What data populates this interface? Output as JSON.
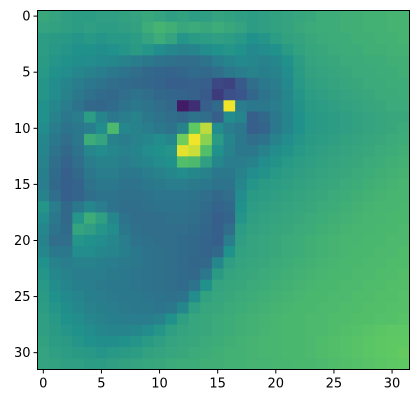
{
  "chart_data": {
    "type": "heatmap",
    "title": "",
    "xlabel": "",
    "ylabel": "",
    "colormap": "viridis",
    "grid": false,
    "xlim": [
      -0.5,
      31.5
    ],
    "ylim": [
      31.5,
      -0.5
    ],
    "x_ticks": [
      0,
      5,
      10,
      15,
      20,
      25,
      30
    ],
    "y_ticks": [
      0,
      5,
      10,
      15,
      20,
      25,
      30
    ],
    "x_tick_labels": [
      "0",
      "5",
      "10",
      "15",
      "20",
      "25",
      "30"
    ],
    "y_tick_labels": [
      "0",
      "5",
      "10",
      "15",
      "20",
      "25",
      "30"
    ],
    "colors": {
      "axis": "#000000",
      "background": "#ffffff"
    },
    "notes": "32x32 grayscale image rendered with viridis colormap; values normalized 0-1",
    "values": [
      [
        0.6,
        0.58,
        0.56,
        0.55,
        0.55,
        0.56,
        0.56,
        0.57,
        0.58,
        0.6,
        0.58,
        0.56,
        0.57,
        0.55,
        0.56,
        0.58,
        0.57,
        0.56,
        0.55,
        0.56,
        0.57,
        0.58,
        0.59,
        0.6,
        0.62,
        0.62,
        0.63,
        0.63,
        0.64,
        0.64,
        0.65,
        0.65
      ],
      [
        0.58,
        0.57,
        0.56,
        0.55,
        0.56,
        0.55,
        0.55,
        0.56,
        0.57,
        0.62,
        0.65,
        0.63,
        0.6,
        0.61,
        0.6,
        0.62,
        0.6,
        0.58,
        0.55,
        0.56,
        0.57,
        0.58,
        0.6,
        0.61,
        0.62,
        0.62,
        0.63,
        0.63,
        0.64,
        0.64,
        0.65,
        0.65
      ],
      [
        0.55,
        0.54,
        0.53,
        0.52,
        0.53,
        0.52,
        0.53,
        0.53,
        0.55,
        0.58,
        0.62,
        0.58,
        0.52,
        0.54,
        0.55,
        0.56,
        0.55,
        0.53,
        0.5,
        0.52,
        0.55,
        0.57,
        0.58,
        0.6,
        0.61,
        0.62,
        0.62,
        0.63,
        0.63,
        0.64,
        0.64,
        0.65
      ],
      [
        0.55,
        0.53,
        0.52,
        0.5,
        0.5,
        0.49,
        0.5,
        0.52,
        0.54,
        0.52,
        0.48,
        0.46,
        0.44,
        0.45,
        0.48,
        0.5,
        0.52,
        0.5,
        0.47,
        0.48,
        0.5,
        0.54,
        0.57,
        0.59,
        0.6,
        0.61,
        0.62,
        0.62,
        0.63,
        0.63,
        0.64,
        0.64
      ],
      [
        0.54,
        0.52,
        0.5,
        0.49,
        0.48,
        0.47,
        0.46,
        0.44,
        0.42,
        0.4,
        0.38,
        0.37,
        0.36,
        0.36,
        0.38,
        0.42,
        0.45,
        0.47,
        0.46,
        0.44,
        0.46,
        0.5,
        0.55,
        0.58,
        0.59,
        0.6,
        0.61,
        0.61,
        0.62,
        0.62,
        0.63,
        0.63
      ],
      [
        0.53,
        0.5,
        0.48,
        0.46,
        0.44,
        0.42,
        0.4,
        0.38,
        0.36,
        0.34,
        0.33,
        0.32,
        0.33,
        0.35,
        0.34,
        0.36,
        0.4,
        0.42,
        0.44,
        0.43,
        0.44,
        0.48,
        0.54,
        0.57,
        0.58,
        0.59,
        0.6,
        0.61,
        0.61,
        0.62,
        0.62,
        0.63
      ],
      [
        0.52,
        0.48,
        0.45,
        0.42,
        0.4,
        0.38,
        0.36,
        0.35,
        0.34,
        0.33,
        0.32,
        0.3,
        0.3,
        0.31,
        0.3,
        0.22,
        0.2,
        0.28,
        0.36,
        0.4,
        0.42,
        0.47,
        0.53,
        0.56,
        0.57,
        0.58,
        0.59,
        0.6,
        0.61,
        0.61,
        0.62,
        0.62
      ],
      [
        0.52,
        0.48,
        0.44,
        0.4,
        0.37,
        0.35,
        0.34,
        0.36,
        0.38,
        0.36,
        0.34,
        0.33,
        0.32,
        0.31,
        0.28,
        0.18,
        0.24,
        0.26,
        0.33,
        0.38,
        0.41,
        0.46,
        0.52,
        0.55,
        0.56,
        0.57,
        0.58,
        0.59,
        0.6,
        0.61,
        0.61,
        0.62
      ],
      [
        0.5,
        0.46,
        0.42,
        0.38,
        0.34,
        0.33,
        0.35,
        0.38,
        0.4,
        0.38,
        0.36,
        0.34,
        0.08,
        0.14,
        0.3,
        0.35,
        0.98,
        0.42,
        0.4,
        0.4,
        0.42,
        0.46,
        0.51,
        0.54,
        0.55,
        0.56,
        0.57,
        0.58,
        0.59,
        0.6,
        0.61,
        0.61
      ],
      [
        0.5,
        0.44,
        0.4,
        0.42,
        0.55,
        0.45,
        0.4,
        0.42,
        0.44,
        0.4,
        0.38,
        0.36,
        0.34,
        0.38,
        0.36,
        0.3,
        0.48,
        0.45,
        0.3,
        0.34,
        0.4,
        0.45,
        0.5,
        0.53,
        0.54,
        0.55,
        0.56,
        0.57,
        0.58,
        0.59,
        0.6,
        0.6
      ],
      [
        0.48,
        0.42,
        0.38,
        0.4,
        0.42,
        0.48,
        0.68,
        0.46,
        0.44,
        0.42,
        0.4,
        0.38,
        0.44,
        0.75,
        0.9,
        0.48,
        0.42,
        0.4,
        0.3,
        0.32,
        0.4,
        0.45,
        0.5,
        0.53,
        0.54,
        0.55,
        0.56,
        0.57,
        0.58,
        0.59,
        0.6,
        0.61
      ],
      [
        0.46,
        0.4,
        0.36,
        0.4,
        0.62,
        0.58,
        0.44,
        0.42,
        0.44,
        0.46,
        0.48,
        0.46,
        0.78,
        0.98,
        0.82,
        0.54,
        0.45,
        0.4,
        0.36,
        0.38,
        0.44,
        0.48,
        0.52,
        0.54,
        0.55,
        0.56,
        0.57,
        0.58,
        0.59,
        0.6,
        0.61,
        0.62
      ],
      [
        0.45,
        0.38,
        0.34,
        0.38,
        0.46,
        0.48,
        0.46,
        0.44,
        0.45,
        0.48,
        0.5,
        0.52,
        0.96,
        0.92,
        0.7,
        0.5,
        0.44,
        0.4,
        0.4,
        0.44,
        0.48,
        0.51,
        0.53,
        0.55,
        0.56,
        0.57,
        0.58,
        0.59,
        0.6,
        0.61,
        0.62,
        0.63
      ],
      [
        0.44,
        0.36,
        0.32,
        0.36,
        0.42,
        0.44,
        0.44,
        0.42,
        0.44,
        0.46,
        0.48,
        0.5,
        0.7,
        0.68,
        0.56,
        0.46,
        0.42,
        0.42,
        0.44,
        0.48,
        0.51,
        0.53,
        0.55,
        0.56,
        0.57,
        0.58,
        0.59,
        0.6,
        0.61,
        0.62,
        0.63,
        0.64
      ],
      [
        0.43,
        0.35,
        0.3,
        0.34,
        0.4,
        0.42,
        0.42,
        0.4,
        0.4,
        0.42,
        0.44,
        0.46,
        0.48,
        0.46,
        0.44,
        0.4,
        0.4,
        0.44,
        0.48,
        0.51,
        0.53,
        0.55,
        0.56,
        0.57,
        0.58,
        0.59,
        0.6,
        0.61,
        0.62,
        0.63,
        0.64,
        0.65
      ],
      [
        0.42,
        0.34,
        0.3,
        0.32,
        0.38,
        0.4,
        0.4,
        0.38,
        0.38,
        0.4,
        0.41,
        0.42,
        0.42,
        0.41,
        0.4,
        0.38,
        0.38,
        0.46,
        0.52,
        0.54,
        0.55,
        0.56,
        0.57,
        0.58,
        0.59,
        0.6,
        0.61,
        0.62,
        0.63,
        0.64,
        0.65,
        0.66
      ],
      [
        0.44,
        0.36,
        0.3,
        0.32,
        0.36,
        0.38,
        0.38,
        0.37,
        0.37,
        0.38,
        0.39,
        0.39,
        0.39,
        0.38,
        0.36,
        0.34,
        0.36,
        0.48,
        0.54,
        0.55,
        0.56,
        0.57,
        0.58,
        0.59,
        0.6,
        0.61,
        0.62,
        0.63,
        0.64,
        0.65,
        0.66,
        0.66
      ],
      [
        0.52,
        0.42,
        0.34,
        0.4,
        0.46,
        0.42,
        0.38,
        0.36,
        0.36,
        0.37,
        0.38,
        0.38,
        0.38,
        0.37,
        0.35,
        0.32,
        0.34,
        0.5,
        0.55,
        0.56,
        0.57,
        0.58,
        0.59,
        0.6,
        0.61,
        0.62,
        0.63,
        0.64,
        0.65,
        0.66,
        0.66,
        0.67
      ],
      [
        0.48,
        0.4,
        0.34,
        0.52,
        0.62,
        0.56,
        0.46,
        0.38,
        0.36,
        0.36,
        0.36,
        0.37,
        0.37,
        0.36,
        0.34,
        0.3,
        0.32,
        0.52,
        0.56,
        0.57,
        0.58,
        0.59,
        0.6,
        0.61,
        0.62,
        0.63,
        0.64,
        0.65,
        0.66,
        0.66,
        0.67,
        0.67
      ],
      [
        0.46,
        0.38,
        0.35,
        0.58,
        0.56,
        0.52,
        0.48,
        0.4,
        0.37,
        0.36,
        0.36,
        0.36,
        0.36,
        0.35,
        0.33,
        0.3,
        0.36,
        0.55,
        0.57,
        0.58,
        0.59,
        0.6,
        0.61,
        0.62,
        0.63,
        0.64,
        0.65,
        0.66,
        0.66,
        0.67,
        0.67,
        0.68
      ],
      [
        0.44,
        0.36,
        0.36,
        0.52,
        0.5,
        0.48,
        0.46,
        0.42,
        0.38,
        0.37,
        0.36,
        0.36,
        0.35,
        0.34,
        0.32,
        0.3,
        0.42,
        0.56,
        0.58,
        0.59,
        0.6,
        0.61,
        0.62,
        0.63,
        0.64,
        0.65,
        0.66,
        0.66,
        0.67,
        0.67,
        0.68,
        0.68
      ],
      [
        0.46,
        0.4,
        0.4,
        0.48,
        0.48,
        0.46,
        0.45,
        0.43,
        0.4,
        0.38,
        0.37,
        0.36,
        0.35,
        0.34,
        0.32,
        0.34,
        0.5,
        0.57,
        0.58,
        0.59,
        0.6,
        0.61,
        0.62,
        0.63,
        0.64,
        0.65,
        0.66,
        0.67,
        0.67,
        0.68,
        0.68,
        0.69
      ],
      [
        0.5,
        0.44,
        0.42,
        0.44,
        0.44,
        0.43,
        0.42,
        0.41,
        0.4,
        0.38,
        0.37,
        0.36,
        0.35,
        0.33,
        0.34,
        0.46,
        0.56,
        0.58,
        0.59,
        0.6,
        0.61,
        0.62,
        0.63,
        0.64,
        0.65,
        0.66,
        0.67,
        0.67,
        0.68,
        0.68,
        0.69,
        0.69
      ],
      [
        0.52,
        0.46,
        0.44,
        0.42,
        0.42,
        0.42,
        0.41,
        0.4,
        0.39,
        0.38,
        0.37,
        0.36,
        0.35,
        0.34,
        0.4,
        0.54,
        0.58,
        0.59,
        0.6,
        0.61,
        0.62,
        0.63,
        0.64,
        0.65,
        0.66,
        0.67,
        0.67,
        0.68,
        0.68,
        0.69,
        0.69,
        0.7
      ],
      [
        0.53,
        0.48,
        0.45,
        0.43,
        0.42,
        0.41,
        0.4,
        0.4,
        0.39,
        0.38,
        0.37,
        0.36,
        0.35,
        0.38,
        0.5,
        0.58,
        0.59,
        0.6,
        0.61,
        0.62,
        0.63,
        0.64,
        0.65,
        0.66,
        0.67,
        0.67,
        0.68,
        0.68,
        0.69,
        0.69,
        0.7,
        0.7
      ],
      [
        0.54,
        0.5,
        0.47,
        0.45,
        0.43,
        0.42,
        0.41,
        0.4,
        0.4,
        0.39,
        0.38,
        0.37,
        0.38,
        0.48,
        0.57,
        0.59,
        0.6,
        0.61,
        0.62,
        0.63,
        0.64,
        0.65,
        0.66,
        0.67,
        0.67,
        0.68,
        0.68,
        0.69,
        0.69,
        0.7,
        0.7,
        0.71
      ],
      [
        0.55,
        0.52,
        0.49,
        0.46,
        0.44,
        0.43,
        0.42,
        0.41,
        0.4,
        0.4,
        0.39,
        0.4,
        0.46,
        0.56,
        0.59,
        0.6,
        0.61,
        0.62,
        0.63,
        0.64,
        0.65,
        0.66,
        0.67,
        0.67,
        0.68,
        0.68,
        0.69,
        0.69,
        0.7,
        0.7,
        0.71,
        0.71
      ],
      [
        0.56,
        0.53,
        0.5,
        0.48,
        0.46,
        0.44,
        0.43,
        0.42,
        0.42,
        0.42,
        0.44,
        0.5,
        0.56,
        0.59,
        0.6,
        0.61,
        0.62,
        0.63,
        0.64,
        0.65,
        0.66,
        0.67,
        0.67,
        0.68,
        0.68,
        0.69,
        0.69,
        0.7,
        0.7,
        0.71,
        0.71,
        0.72
      ],
      [
        0.56,
        0.54,
        0.52,
        0.5,
        0.48,
        0.46,
        0.45,
        0.45,
        0.46,
        0.48,
        0.52,
        0.56,
        0.58,
        0.59,
        0.6,
        0.61,
        0.62,
        0.63,
        0.64,
        0.65,
        0.66,
        0.67,
        0.67,
        0.68,
        0.68,
        0.69,
        0.7,
        0.71,
        0.72,
        0.73,
        0.74,
        0.74
      ],
      [
        0.57,
        0.55,
        0.54,
        0.52,
        0.5,
        0.49,
        0.49,
        0.5,
        0.52,
        0.54,
        0.56,
        0.58,
        0.59,
        0.6,
        0.61,
        0.62,
        0.63,
        0.64,
        0.65,
        0.66,
        0.66,
        0.67,
        0.67,
        0.68,
        0.69,
        0.7,
        0.71,
        0.72,
        0.73,
        0.74,
        0.75,
        0.75
      ],
      [
        0.58,
        0.56,
        0.55,
        0.54,
        0.53,
        0.52,
        0.53,
        0.54,
        0.55,
        0.57,
        0.58,
        0.59,
        0.6,
        0.61,
        0.62,
        0.63,
        0.64,
        0.64,
        0.65,
        0.66,
        0.66,
        0.67,
        0.67,
        0.68,
        0.69,
        0.7,
        0.71,
        0.72,
        0.73,
        0.74,
        0.75,
        0.76
      ],
      [
        0.58,
        0.57,
        0.56,
        0.56,
        0.55,
        0.55,
        0.56,
        0.57,
        0.58,
        0.59,
        0.6,
        0.61,
        0.62,
        0.62,
        0.63,
        0.63,
        0.64,
        0.64,
        0.65,
        0.65,
        0.66,
        0.66,
        0.67,
        0.67,
        0.68,
        0.69,
        0.7,
        0.71,
        0.72,
        0.73,
        0.74,
        0.75
      ]
    ]
  }
}
